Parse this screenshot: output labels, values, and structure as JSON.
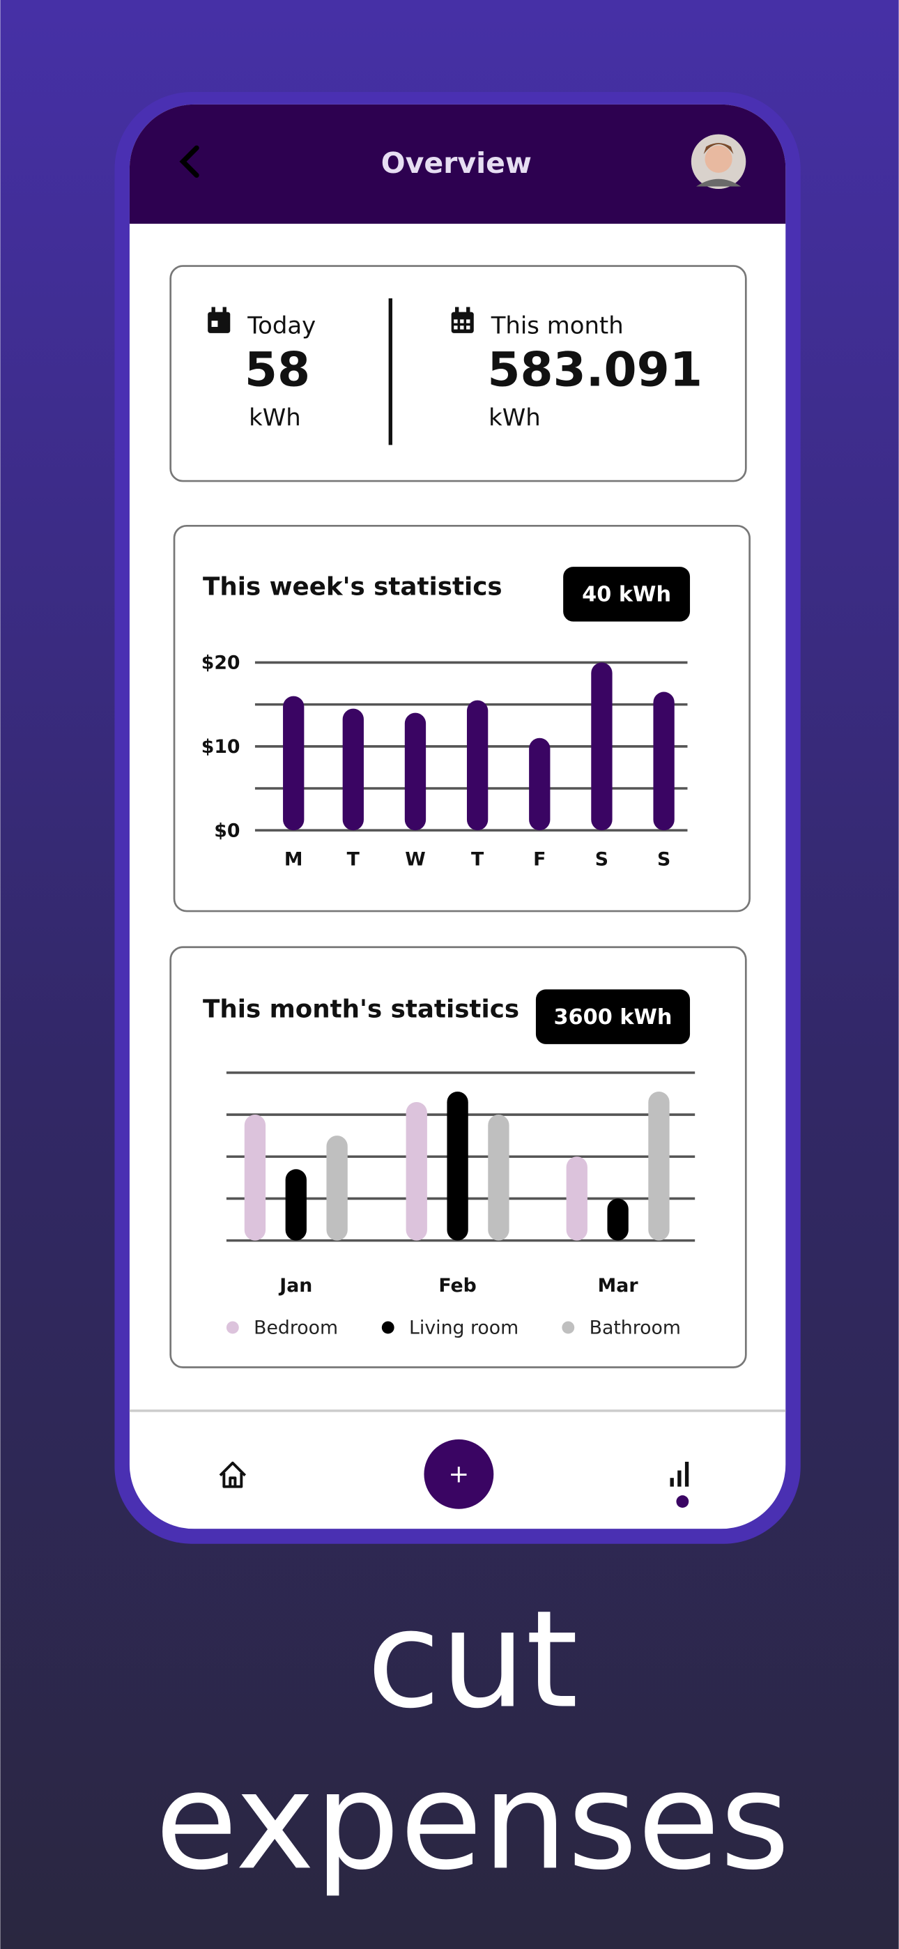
{
  "header": {
    "title": "Overview"
  },
  "summary": {
    "today": {
      "label": "Today",
      "value": 58,
      "unit": "kWh"
    },
    "month": {
      "label": "This month",
      "value": 583.091,
      "unit": "kWh"
    }
  },
  "chart_data": [
    {
      "type": "bar",
      "title": "This week's statistics",
      "badge": "40 kWh",
      "categories": [
        "M",
        "T",
        "W",
        "T",
        "F",
        "S",
        "S"
      ],
      "values": [
        16,
        14.5,
        14,
        15.5,
        11,
        20,
        16.5
      ],
      "color": "#3a0563",
      "ylim": [
        0,
        20
      ],
      "yticks": [
        {
          "value": 0,
          "label": "$0"
        },
        {
          "value": 10,
          "label": "$10"
        },
        {
          "value": 20,
          "label": "$20"
        }
      ],
      "minor_yticks": [
        5,
        15
      ],
      "grid": true
    },
    {
      "type": "grouped_bar",
      "title": "This month's statistics",
      "badge": "3600 kWh",
      "categories": [
        "Jan",
        "Feb",
        "Mar"
      ],
      "series": [
        {
          "name": "Bedroom",
          "color": "#dcc3dc",
          "values": [
            3,
            3.3,
            2
          ]
        },
        {
          "name": "Living room",
          "color": "#000000",
          "values": [
            1.7,
            3.55,
            1
          ]
        },
        {
          "name": "Bathroom",
          "color": "#bfbfbf",
          "values": [
            2.5,
            3,
            3.55
          ]
        }
      ],
      "ylim": [
        0,
        4
      ],
      "yticks": [
        0,
        1,
        2,
        3,
        4
      ],
      "show_tick_labels": false,
      "grid": true,
      "legend": "bottom"
    }
  ],
  "nav": {
    "add": "+"
  },
  "caption": [
    "cut",
    "expenses"
  ]
}
